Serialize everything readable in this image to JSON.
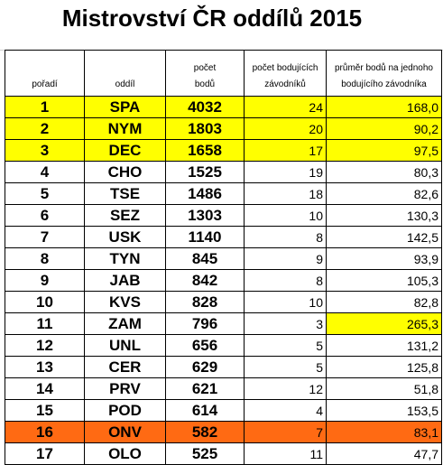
{
  "header": {
    "title": "Mistrovství ČR oddílů 2015"
  },
  "table": {
    "header_top": [
      "počet",
      "počet bodujících",
      "průměr bodů na jednoho"
    ],
    "header_bottom": [
      "pořadí",
      "oddíl",
      "bodů",
      "závodníků",
      "bodujícího závodníka"
    ],
    "rows": [
      [
        "1",
        "SPA",
        "4032",
        "24",
        "168,0"
      ],
      [
        "2",
        "NYM",
        "1803",
        "20",
        "90,2"
      ],
      [
        "3",
        "DEC",
        "1658",
        "17",
        "97,5"
      ],
      [
        "4",
        "CHO",
        "1525",
        "19",
        "80,3"
      ],
      [
        "5",
        "TSE",
        "1486",
        "18",
        "82,6"
      ],
      [
        "6",
        "SEZ",
        "1303",
        "10",
        "130,3"
      ],
      [
        "7",
        "USK",
        "1140",
        "8",
        "142,5"
      ],
      [
        "8",
        "TYN",
        "845",
        "9",
        "93,9"
      ],
      [
        "9",
        "JAB",
        "842",
        "8",
        "105,3"
      ],
      [
        "10",
        "KVS",
        "828",
        "10",
        "82,8"
      ],
      [
        "11",
        "ZAM",
        "796",
        "3",
        "265,3"
      ],
      [
        "12",
        "UNL",
        "656",
        "5",
        "131,2"
      ],
      [
        "13",
        "CER",
        "629",
        "5",
        "125,8"
      ],
      [
        "14",
        "PRV",
        "621",
        "12",
        "51,8"
      ],
      [
        "15",
        "POD",
        "614",
        "4",
        "153,5"
      ],
      [
        "16",
        "ONV",
        "582",
        "7",
        "83,1"
      ],
      [
        "17",
        "OLO",
        "525",
        "11",
        "47,7"
      ]
    ]
  }
}
